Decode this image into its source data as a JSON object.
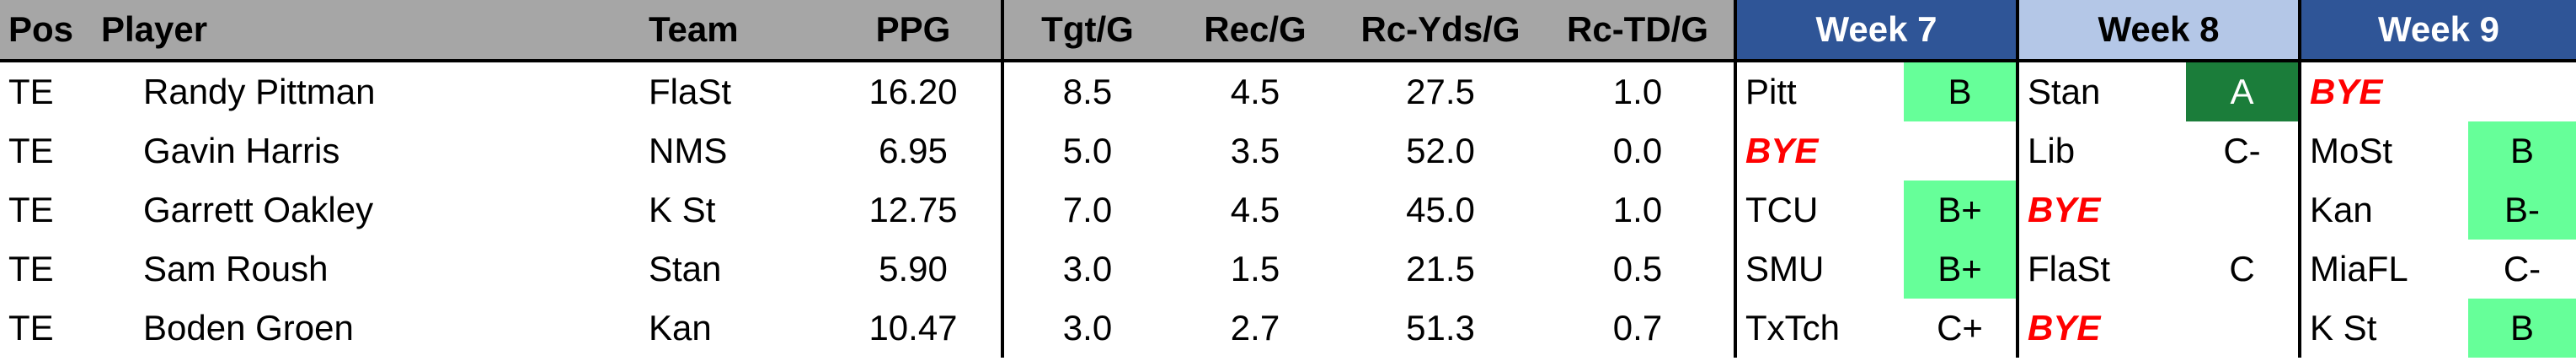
{
  "headers": {
    "pos": "Pos",
    "player": "Player",
    "team": "Team",
    "ppg": "PPG",
    "tgt": "Tgt/G",
    "rec": "Rec/G",
    "rcyds": "Rc-Yds/G",
    "rctd": "Rc-TD/G",
    "week7": "Week 7",
    "week8": "Week 8",
    "week9": "Week 9"
  },
  "colors": {
    "week_header_dark": "#2f5597",
    "week_header_light": "#b4c7e7",
    "grade_light_green": "#66ff99",
    "grade_dark_green": "#1b7d3a",
    "bye_red": "#ff0000",
    "header_gray": "#a6a6a6"
  },
  "rows": [
    {
      "pos": "TE",
      "player": "Randy Pittman",
      "team": "FlaSt",
      "ppg": "16.20",
      "tgt": "8.5",
      "rec": "4.5",
      "rcyds": "27.5",
      "rctd": "1.0",
      "w7_opp": "Pitt",
      "w7_grade": "B",
      "w8_opp": "Stan",
      "w8_grade": "A",
      "w9_opp": "BYE",
      "w9_grade": ""
    },
    {
      "pos": "TE",
      "player": "Gavin Harris",
      "team": "NMS",
      "ppg": "6.95",
      "tgt": "5.0",
      "rec": "3.5",
      "rcyds": "52.0",
      "rctd": "0.0",
      "w7_opp": "BYE",
      "w7_grade": "",
      "w8_opp": "Lib",
      "w8_grade": "C-",
      "w9_opp": "MoSt",
      "w9_grade": "B"
    },
    {
      "pos": "TE",
      "player": "Garrett Oakley",
      "team": "K St",
      "ppg": "12.75",
      "tgt": "7.0",
      "rec": "4.5",
      "rcyds": "45.0",
      "rctd": "1.0",
      "w7_opp": "TCU",
      "w7_grade": "B+",
      "w8_opp": "BYE",
      "w8_grade": "",
      "w9_opp": "Kan",
      "w9_grade": "B-"
    },
    {
      "pos": "TE",
      "player": "Sam Roush",
      "team": "Stan",
      "ppg": "5.90",
      "tgt": "3.0",
      "rec": "1.5",
      "rcyds": "21.5",
      "rctd": "0.5",
      "w7_opp": "SMU",
      "w7_grade": "B+",
      "w8_opp": "FlaSt",
      "w8_grade": "C",
      "w9_opp": "MiaFL",
      "w9_grade": "C-"
    },
    {
      "pos": "TE",
      "player": "Boden Groen",
      "team": "Kan",
      "ppg": "10.47",
      "tgt": "3.0",
      "rec": "2.7",
      "rcyds": "51.3",
      "rctd": "0.7",
      "w7_opp": "TxTch",
      "w7_grade": "C+",
      "w8_opp": "BYE",
      "w8_grade": "",
      "w9_opp": "K St",
      "w9_grade": "B"
    }
  ]
}
